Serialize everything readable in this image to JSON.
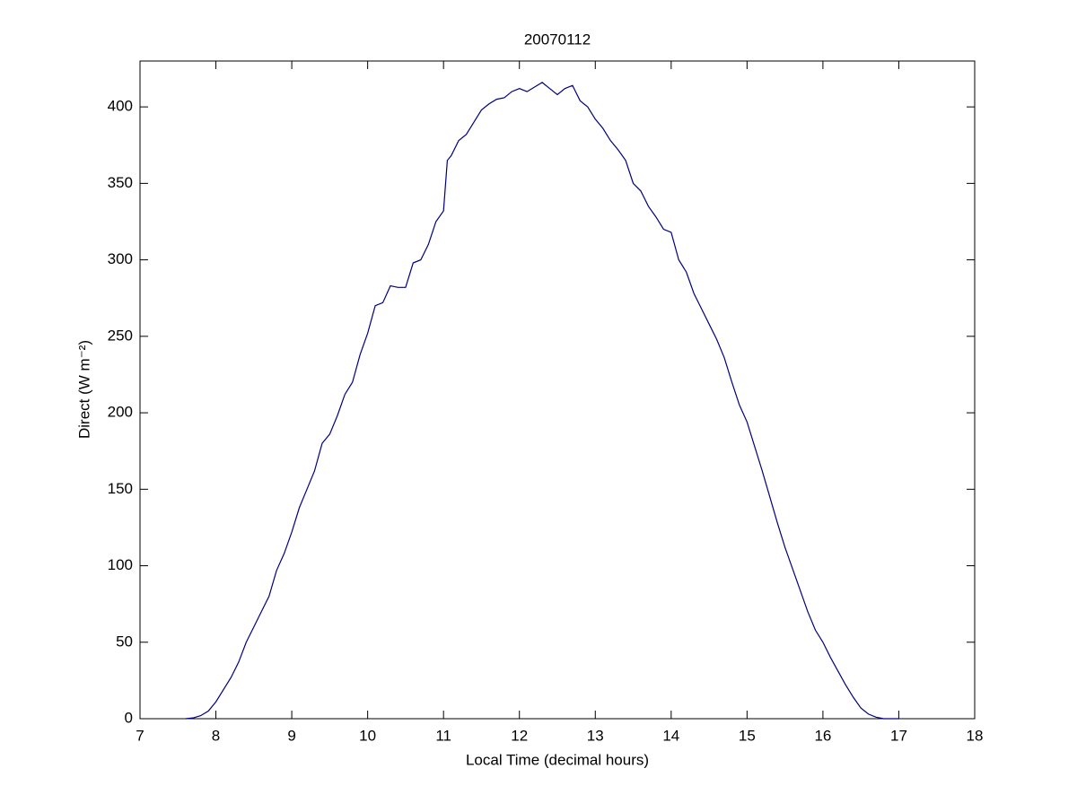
{
  "chart_data": {
    "type": "line",
    "title": "20070112",
    "xlabel": "Local Time (decimal hours)",
    "ylabel": "Direct (W m⁻²)",
    "x": [
      7.6,
      7.7,
      7.8,
      7.9,
      8.0,
      8.1,
      8.2,
      8.3,
      8.4,
      8.5,
      8.6,
      8.7,
      8.8,
      8.9,
      9.0,
      9.1,
      9.2,
      9.3,
      9.4,
      9.5,
      9.6,
      9.7,
      9.8,
      9.9,
      10.0,
      10.1,
      10.2,
      10.3,
      10.4,
      10.5,
      10.6,
      10.7,
      10.8,
      10.9,
      11.0,
      11.05,
      11.1,
      11.2,
      11.3,
      11.4,
      11.5,
      11.6,
      11.7,
      11.8,
      11.9,
      12.0,
      12.1,
      12.2,
      12.3,
      12.4,
      12.5,
      12.6,
      12.7,
      12.8,
      12.9,
      13.0,
      13.1,
      13.2,
      13.3,
      13.4,
      13.5,
      13.6,
      13.7,
      13.8,
      13.9,
      14.0,
      14.1,
      14.2,
      14.3,
      14.4,
      14.5,
      14.6,
      14.7,
      14.8,
      14.9,
      15.0,
      15.1,
      15.2,
      15.3,
      15.4,
      15.5,
      15.6,
      15.7,
      15.8,
      15.9,
      16.0,
      16.1,
      16.2,
      16.3,
      16.4,
      16.5,
      16.6,
      16.7,
      16.8,
      17.0
    ],
    "series": [
      {
        "name": "Direct",
        "color": "#00007f",
        "values": [
          0,
          0.5,
          2,
          5,
          11,
          19,
          27,
          37,
          50,
          60,
          70,
          80,
          97,
          108,
          122,
          138,
          150,
          162,
          180,
          186,
          198,
          212,
          220,
          238,
          252,
          270,
          272,
          283,
          282,
          282,
          298,
          300,
          310,
          325,
          332,
          365,
          368,
          378,
          382,
          390,
          398,
          402,
          405,
          406,
          410,
          412,
          410,
          413,
          416,
          412,
          408,
          412,
          414,
          404,
          400,
          392,
          386,
          378,
          372,
          365,
          350,
          345,
          335,
          328,
          320,
          318,
          300,
          292,
          278,
          268,
          258,
          248,
          236,
          220,
          205,
          194,
          178,
          162,
          145,
          128,
          112,
          98,
          84,
          70,
          58,
          50,
          40,
          31,
          22,
          14,
          7,
          3,
          1,
          0,
          0
        ]
      }
    ],
    "xlim": [
      7,
      18
    ],
    "xticks": [
      7,
      8,
      9,
      10,
      11,
      12,
      13,
      14,
      15,
      16,
      17,
      18
    ],
    "ylim": [
      0,
      430
    ],
    "yticks": [
      0,
      50,
      100,
      150,
      200,
      250,
      300,
      350,
      400
    ]
  }
}
